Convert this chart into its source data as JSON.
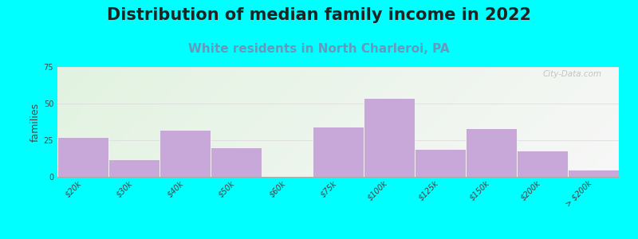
{
  "title": "Distribution of median family income in 2022",
  "subtitle": "White residents in North Charleroi, PA",
  "ylabel": "families",
  "categories": [
    "$20k",
    "$30k",
    "$40k",
    "$50k",
    "$60k",
    "$75k",
    "$100k",
    "$125k",
    "$150k",
    "$200k",
    "> $200k"
  ],
  "values": [
    27,
    12,
    32,
    20,
    0,
    34,
    54,
    19,
    33,
    18,
    5
  ],
  "bar_color": "#c8a8d8",
  "bg_color": "#00ffff",
  "title_fontsize": 15,
  "title_color": "#222222",
  "subtitle_fontsize": 11,
  "subtitle_color": "#6699bb",
  "ylabel_fontsize": 9,
  "tick_fontsize": 7,
  "ylim": [
    0,
    75
  ],
  "yticks": [
    0,
    25,
    50,
    75
  ],
  "grid_color": "#dddddd",
  "watermark": "City-Data.com",
  "bar_width": 1.0
}
